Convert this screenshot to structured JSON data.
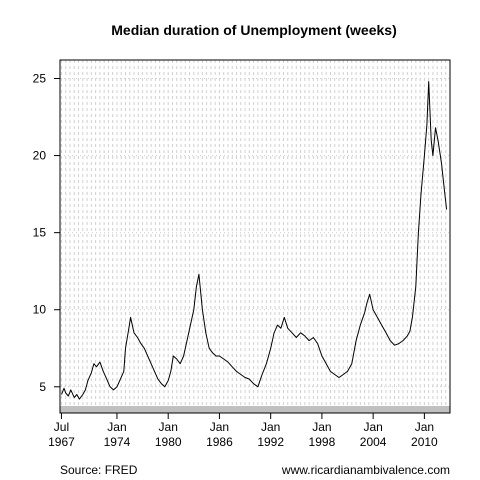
{
  "chart_data": {
    "type": "line",
    "title": "Median duration of Unemployment (weeks)",
    "xlabel": "",
    "ylabel": "",
    "xlim": [
      1967.33,
      2013.0
    ],
    "ylim": [
      3.3,
      26.2
    ],
    "grid": true,
    "y_ticks": [
      5,
      10,
      15,
      20,
      25
    ],
    "x_ticks": [
      {
        "x": 1967.5,
        "top": "Jul",
        "bottom": "1967"
      },
      {
        "x": 1974.0,
        "top": "Jan",
        "bottom": "1974"
      },
      {
        "x": 1980.0,
        "top": "Jan",
        "bottom": "1980"
      },
      {
        "x": 1986.0,
        "top": "Jan",
        "bottom": "1986"
      },
      {
        "x": 1992.0,
        "top": "Jan",
        "bottom": "1992"
      },
      {
        "x": 1998.0,
        "top": "Jan",
        "bottom": "1998"
      },
      {
        "x": 2004.0,
        "top": "Jan",
        "bottom": "2004"
      },
      {
        "x": 2010.0,
        "top": "Jan",
        "bottom": "2010"
      }
    ],
    "series": [
      {
        "x": [
          1967.5,
          1967.8,
          1968.0,
          1968.3,
          1968.6,
          1969.0,
          1969.3,
          1969.6,
          1970.0,
          1970.3,
          1970.6,
          1971.0,
          1971.3,
          1971.6,
          1972.0,
          1972.4,
          1972.8,
          1973.2,
          1973.6,
          1974.0,
          1974.4,
          1974.8,
          1975.0,
          1975.3,
          1975.6,
          1976.0,
          1976.4,
          1976.8,
          1977.2,
          1977.6,
          1978.0,
          1978.4,
          1978.8,
          1979.2,
          1979.6,
          1980.0,
          1980.3,
          1980.6,
          1981.0,
          1981.4,
          1981.8,
          1982.2,
          1982.6,
          1983.0,
          1983.3,
          1983.6,
          1984.0,
          1984.4,
          1984.8,
          1985.2,
          1985.6,
          1986.0,
          1986.5,
          1987.0,
          1987.5,
          1988.0,
          1988.5,
          1989.0,
          1989.5,
          1990.0,
          1990.5,
          1991.0,
          1991.5,
          1992.0,
          1992.4,
          1992.8,
          1993.2,
          1993.6,
          1994.0,
          1994.5,
          1995.0,
          1995.5,
          1996.0,
          1996.5,
          1997.0,
          1997.5,
          1998.0,
          1998.5,
          1999.0,
          1999.5,
          2000.0,
          2000.5,
          2001.0,
          2001.5,
          2002.0,
          2002.5,
          2003.0,
          2003.3,
          2003.6,
          2004.0,
          2004.5,
          2005.0,
          2005.5,
          2006.0,
          2006.5,
          2007.0,
          2007.5,
          2008.0,
          2008.3,
          2008.6,
          2009.0,
          2009.3,
          2009.6,
          2010.0,
          2010.3,
          2010.5,
          2010.8,
          2011.0,
          2011.3,
          2011.6,
          2012.0,
          2012.3,
          2012.6
        ],
        "y": [
          4.5,
          4.9,
          4.6,
          4.4,
          4.8,
          4.3,
          4.5,
          4.2,
          4.5,
          4.8,
          5.4,
          5.9,
          6.5,
          6.3,
          6.6,
          6.0,
          5.5,
          5.0,
          4.8,
          5.0,
          5.5,
          6.0,
          7.5,
          8.5,
          9.5,
          8.5,
          8.2,
          7.8,
          7.5,
          7.0,
          6.5,
          6.0,
          5.5,
          5.2,
          5.0,
          5.4,
          6.0,
          7.0,
          6.8,
          6.5,
          7.0,
          8.0,
          9.0,
          10.0,
          11.5,
          12.3,
          10.0,
          8.5,
          7.5,
          7.2,
          7.0,
          7.0,
          6.8,
          6.6,
          6.3,
          6.0,
          5.8,
          5.6,
          5.5,
          5.2,
          5.0,
          5.8,
          6.5,
          7.5,
          8.5,
          9.0,
          8.8,
          9.5,
          8.8,
          8.5,
          8.2,
          8.5,
          8.3,
          8.0,
          8.2,
          7.8,
          7.0,
          6.5,
          6.0,
          5.8,
          5.6,
          5.8,
          6.0,
          6.5,
          8.0,
          9.0,
          9.8,
          10.5,
          11.0,
          10.0,
          9.5,
          9.0,
          8.5,
          8.0,
          7.7,
          7.8,
          8.0,
          8.3,
          8.6,
          9.5,
          11.5,
          15.0,
          17.5,
          20.0,
          22.0,
          24.8,
          21.0,
          20.0,
          21.8,
          21.0,
          19.5,
          18.0,
          16.5
        ]
      }
    ]
  },
  "footer": {
    "source": "Source: FRED",
    "site": "www.ricardianambivalence.com"
  }
}
